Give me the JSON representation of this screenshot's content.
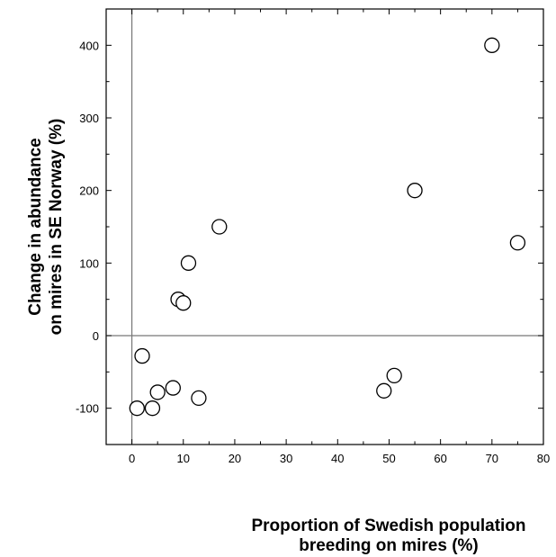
{
  "chart_data": {
    "type": "scatter",
    "xlabel_lines": [
      "Proportion of Swedish population",
      "breeding on mires (%)"
    ],
    "ylabel_lines": [
      "Change in abundance",
      "on mires in SE Norway (%)"
    ],
    "xlim": [
      -5,
      80
    ],
    "ylim": [
      -150,
      450
    ],
    "x_ticks": [
      0,
      10,
      20,
      30,
      40,
      50,
      60,
      70,
      80
    ],
    "y_ticks": [
      -100,
      0,
      100,
      200,
      300,
      400
    ],
    "x_tick_labels": [
      "0",
      "10",
      "20",
      "30",
      "40",
      "50",
      "60",
      "70",
      "80"
    ],
    "y_tick_labels": [
      "-100",
      "0",
      "100",
      "200",
      "300",
      "400"
    ],
    "reference_lines": {
      "x": 0,
      "y": 0
    },
    "grid": false,
    "marker": "open-circle",
    "points": [
      {
        "x": 1,
        "y": -100
      },
      {
        "x": 4,
        "y": -100
      },
      {
        "x": 2,
        "y": -28
      },
      {
        "x": 5,
        "y": -78
      },
      {
        "x": 8,
        "y": -72
      },
      {
        "x": 13,
        "y": -86
      },
      {
        "x": 9,
        "y": 50
      },
      {
        "x": 10,
        "y": 45
      },
      {
        "x": 11,
        "y": 100
      },
      {
        "x": 17,
        "y": 150
      },
      {
        "x": 49,
        "y": -76
      },
      {
        "x": 51,
        "y": -55
      },
      {
        "x": 55,
        "y": 200
      },
      {
        "x": 70,
        "y": 400
      },
      {
        "x": 75,
        "y": 128
      }
    ]
  }
}
